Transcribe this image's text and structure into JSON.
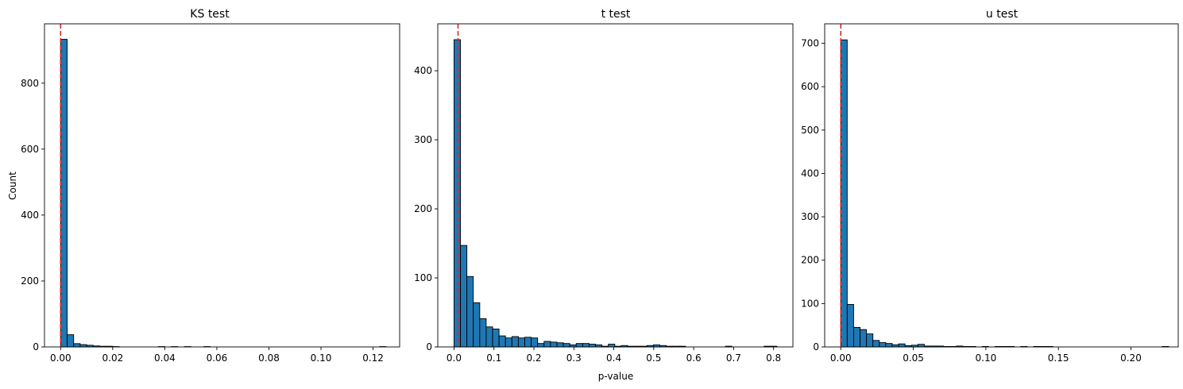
{
  "colors": {
    "bar_fill": "#1f77b4",
    "bar_edge": "#000000",
    "threshold_line": "#d62728"
  },
  "chart_data": [
    {
      "type": "bar",
      "title": "KS test",
      "xlabel": "",
      "ylabel": "Count",
      "threshold_x": 0.0,
      "threshold_style": "dashed",
      "bin_width": 0.0025,
      "bins_start": [
        0.0,
        0.0025,
        0.005,
        0.0075,
        0.01,
        0.0125,
        0.015,
        0.0175,
        0.02,
        0.0375,
        0.0425,
        0.0475,
        0.055,
        0.1225
      ],
      "counts": [
        933,
        37,
        10,
        7,
        5,
        3,
        2,
        2,
        1,
        1,
        1,
        1,
        1,
        1
      ],
      "xlim": [
        -0.0062,
        0.1302
      ],
      "ylim": [
        0,
        980
      ],
      "xticks": [
        0.0,
        0.02,
        0.04,
        0.06,
        0.08,
        0.1,
        0.12
      ],
      "xtick_labels": [
        "0.00",
        "0.02",
        "0.04",
        "0.06",
        "0.08",
        "0.10",
        "0.12"
      ],
      "yticks": [
        0,
        200,
        400,
        600,
        800
      ],
      "ytick_labels": [
        "0",
        "200",
        "400",
        "600",
        "800"
      ],
      "grid": false,
      "legend": "none"
    },
    {
      "type": "bar",
      "title": "t test",
      "xlabel": "p-value",
      "ylabel": "",
      "threshold_x": 0.01,
      "threshold_style": "dashed",
      "bin_width": 0.0161,
      "bins_start": [
        0.0,
        0.0161,
        0.0322,
        0.0483,
        0.0644,
        0.0805,
        0.0966,
        0.1127,
        0.1288,
        0.1449,
        0.161,
        0.1771,
        0.1932,
        0.2093,
        0.2254,
        0.2415,
        0.2576,
        0.2737,
        0.2898,
        0.3059,
        0.322,
        0.3381,
        0.3542,
        0.3703,
        0.3864,
        0.4025,
        0.4186,
        0.4347,
        0.4508,
        0.4669,
        0.483,
        0.4991,
        0.5152,
        0.5313,
        0.5474,
        0.5635,
        0.6796,
        0.7762,
        0.7923
      ],
      "counts": [
        445,
        147,
        102,
        64,
        41,
        29,
        26,
        16,
        13,
        15,
        13,
        14,
        13,
        5,
        8,
        7,
        6,
        5,
        3,
        5,
        5,
        4,
        3,
        1,
        4,
        1,
        2,
        1,
        1,
        1,
        2,
        3,
        2,
        1,
        1,
        1,
        1,
        1,
        1
      ],
      "xlim": [
        -0.0407,
        0.8484
      ],
      "ylim": [
        0,
        468
      ],
      "xticks": [
        0.0,
        0.1,
        0.2,
        0.3,
        0.4,
        0.5,
        0.6,
        0.7,
        0.8
      ],
      "xtick_labels": [
        "0.0",
        "0.1",
        "0.2",
        "0.3",
        "0.4",
        "0.5",
        "0.6",
        "0.7",
        "0.8"
      ],
      "yticks": [
        0,
        100,
        200,
        300,
        400
      ],
      "ytick_labels": [
        "0",
        "100",
        "200",
        "300",
        "400"
      ],
      "grid": false,
      "legend": "none"
    },
    {
      "type": "bar",
      "title": "u test",
      "xlabel": "",
      "ylabel": "",
      "threshold_x": 0.0,
      "threshold_style": "dashed",
      "bin_width": 0.00443,
      "bins_start": [
        0.0,
        0.00443,
        0.00886,
        0.01329,
        0.01772,
        0.02215,
        0.02658,
        0.03101,
        0.03544,
        0.03987,
        0.0443,
        0.04873,
        0.05316,
        0.05759,
        0.06202,
        0.06645,
        0.07088,
        0.07531,
        0.07974,
        0.08417,
        0.0886,
        0.09746,
        0.10632,
        0.11075,
        0.11518,
        0.12404,
        0.1329,
        0.13733,
        0.14176,
        0.2215
      ],
      "counts": [
        708,
        98,
        45,
        40,
        30,
        15,
        10,
        8,
        5,
        7,
        3,
        4,
        6,
        2,
        2,
        2,
        1,
        1,
        2,
        1,
        1,
        1,
        1,
        1,
        1,
        1,
        1,
        1,
        1,
        1
      ],
      "xlim": [
        -0.0111,
        0.2326
      ],
      "ylim": [
        0,
        745
      ],
      "xticks": [
        0.0,
        0.05,
        0.1,
        0.15,
        0.2
      ],
      "xtick_labels": [
        "0.00",
        "0.05",
        "0.10",
        "0.15",
        "0.20"
      ],
      "yticks": [
        0,
        100,
        200,
        300,
        400,
        500,
        600,
        700
      ],
      "ytick_labels": [
        "0",
        "100",
        "200",
        "300",
        "400",
        "500",
        "600",
        "700"
      ],
      "grid": false,
      "legend": "none"
    }
  ]
}
